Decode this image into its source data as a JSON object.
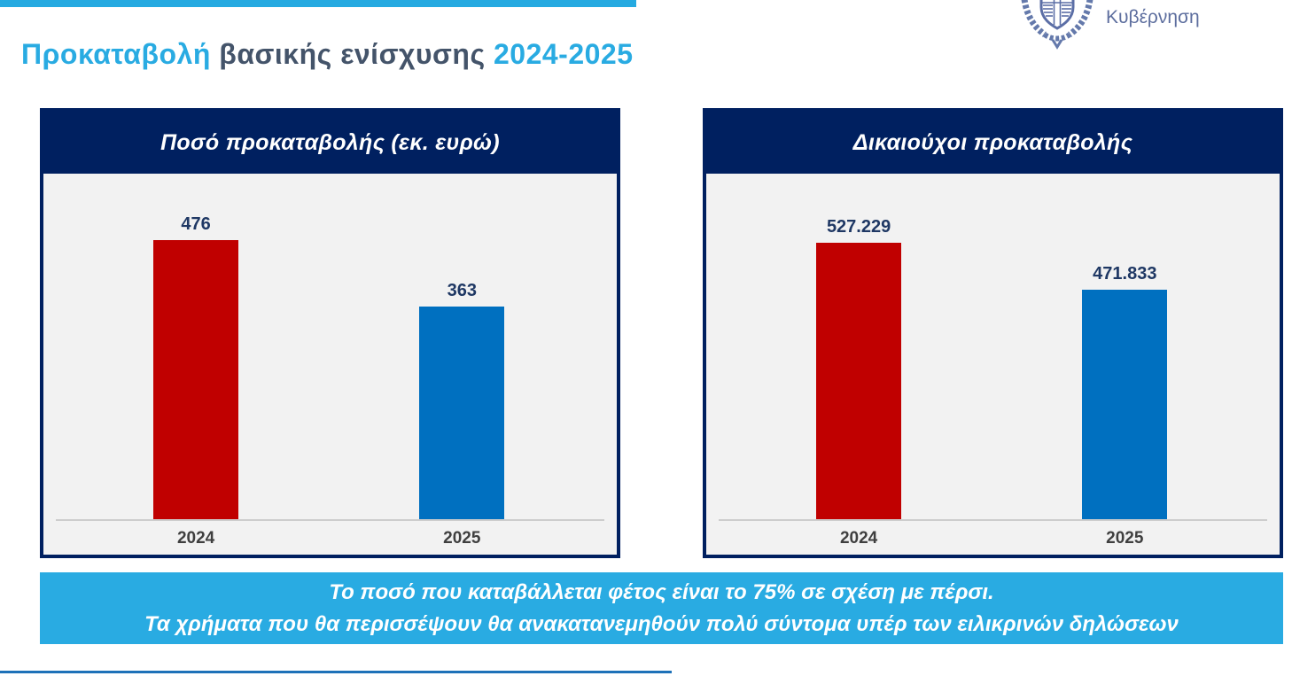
{
  "page": {
    "title": {
      "part1": "Προκαταβολή",
      "part2": " βασικής ενίσχυσης ",
      "part3": "2024-2025"
    },
    "logo": {
      "name": "greek-government-emblem",
      "text": "Κυβέρνηση"
    },
    "banner": {
      "line1": "Το ποσό που καταβάλλεται φέτος είναι το 75% σε σχέση με πέρσι.",
      "line2": "Τα χρήματα που θα περισσέψουν θα ανακατανεμηθούν πολύ σύντομα υπέρ των ειλικρινών δηλώσεων"
    },
    "colors": {
      "accent_cyan": "#29abe2",
      "navy": "#002060",
      "bar_red": "#c00000",
      "bar_blue": "#0070c0",
      "title_dark": "#44546a"
    }
  },
  "chart_data": [
    {
      "type": "bar",
      "title": "Ποσό προκαταβολής (εκ. ευρώ)",
      "categories": [
        "2024",
        "2025"
      ],
      "values": [
        476,
        363
      ],
      "value_labels": [
        "476",
        "363"
      ],
      "colors": [
        "#c00000",
        "#0070c0"
      ],
      "ylim": [
        0,
        590
      ],
      "grid": false,
      "legend": false,
      "xlabel": "",
      "ylabel": ""
    },
    {
      "type": "bar",
      "title": "Δικαιούχοι προκαταβολής",
      "categories": [
        "2024",
        "2025"
      ],
      "values": [
        527229,
        471833
      ],
      "value_labels": [
        "527.229",
        "471.833"
      ],
      "colors": [
        "#c00000",
        "#0070c0"
      ],
      "ylim": [
        200000,
        610000
      ],
      "grid": false,
      "legend": false,
      "xlabel": "",
      "ylabel": ""
    }
  ]
}
